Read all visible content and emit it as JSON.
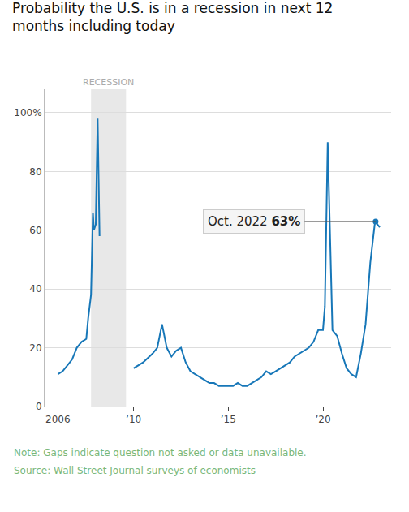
{
  "chart_data": {
    "type": "line",
    "title": "Probability the U.S. is in a recession in next 12\nmonths including today",
    "x": [
      2005.5,
      2006.0,
      2006.25,
      2006.5,
      2006.75,
      2007.0,
      2007.25,
      2007.5,
      2007.6,
      2007.75,
      2007.85,
      2007.9,
      2008.0,
      2008.1,
      2008.2,
      2008.4,
      2009.75,
      2010.0,
      2010.5,
      2011.0,
      2011.25,
      2011.5,
      2011.75,
      2012.0,
      2012.25,
      2012.5,
      2012.75,
      2013.0,
      2013.25,
      2013.5,
      2013.75,
      2014.0,
      2014.25,
      2014.5,
      2014.75,
      2015.0,
      2015.25,
      2015.5,
      2015.75,
      2016.0,
      2016.25,
      2016.5,
      2016.75,
      2017.0,
      2017.25,
      2017.5,
      2017.75,
      2018.0,
      2018.25,
      2018.5,
      2018.75,
      2019.0,
      2019.25,
      2019.5,
      2019.75,
      2020.0,
      2020.1,
      2020.25,
      2020.3,
      2020.5,
      2020.75,
      2021.0,
      2021.25,
      2021.5,
      2021.75,
      2022.0,
      2022.25,
      2022.5,
      2022.75,
      2023.0
    ],
    "series": [
      {
        "color": "#1777b8",
        "values": [
          null,
          11,
          12,
          14,
          16,
          20,
          22,
          23,
          30,
          38,
          66,
          60,
          62,
          98,
          58,
          null,
          null,
          13,
          15,
          18,
          20,
          28,
          20,
          17,
          19,
          20,
          15,
          12,
          11,
          10,
          9,
          8,
          8,
          7,
          7,
          7,
          7,
          8,
          7,
          7,
          8,
          9,
          10,
          12,
          11,
          12,
          13,
          14,
          15,
          17,
          18,
          19,
          20,
          22,
          26,
          26,
          34,
          90,
          78,
          26,
          24,
          18,
          13,
          11,
          10,
          18,
          28,
          49,
          63,
          61
        ]
      }
    ],
    "xlim": [
      2005.3,
      2023.6
    ],
    "xticks": [
      2006,
      {
        "value": 2010,
        "label": "’10"
      },
      {
        "value": 2015,
        "label": "’15"
      },
      {
        "value": 2020,
        "label": "’20"
      }
    ],
    "ylim": [
      0,
      108
    ],
    "yticks": [
      0,
      20,
      40,
      60,
      80,
      {
        "value": 100,
        "label": "100%"
      }
    ],
    "grid": true,
    "shaded_regions": [
      {
        "start": 2007.75,
        "end": 2009.6,
        "label": "RECESSION"
      }
    ],
    "annotations": [
      {
        "text": "Oct. 2022",
        "label": "63%",
        "x": 2022.78,
        "y": 63
      }
    ],
    "notes": [
      {
        "text": "Note: Gaps indicate question not asked or data unavailable.",
        "color": "#7ab87a"
      },
      {
        "text": "Source: Wall Street Journal surveys of economists",
        "color": "#7ab87a"
      }
    ]
  }
}
